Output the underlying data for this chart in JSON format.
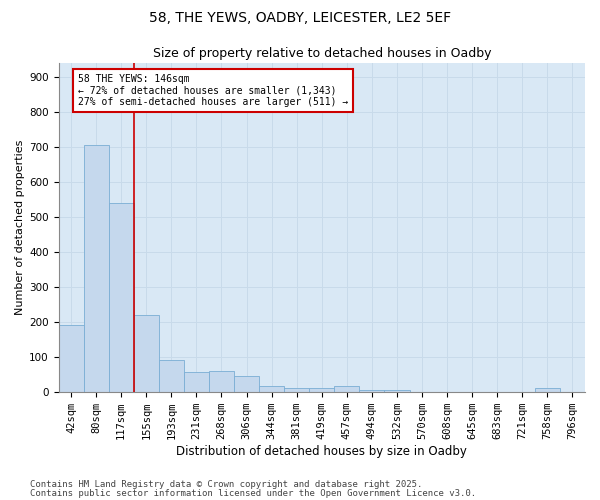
{
  "title_line1": "58, THE YEWS, OADBY, LEICESTER, LE2 5EF",
  "title_line2": "Size of property relative to detached houses in Oadby",
  "xlabel": "Distribution of detached houses by size in Oadby",
  "ylabel": "Number of detached properties",
  "categories": [
    "42sqm",
    "80sqm",
    "117sqm",
    "155sqm",
    "193sqm",
    "231sqm",
    "268sqm",
    "306sqm",
    "344sqm",
    "381sqm",
    "419sqm",
    "457sqm",
    "494sqm",
    "532sqm",
    "570sqm",
    "608sqm",
    "645sqm",
    "683sqm",
    "721sqm",
    "758sqm",
    "796sqm"
  ],
  "values": [
    190,
    705,
    540,
    220,
    90,
    55,
    60,
    45,
    15,
    10,
    10,
    15,
    5,
    5,
    0,
    0,
    0,
    0,
    0,
    10,
    0
  ],
  "bar_color": "#c5d8ed",
  "bar_edge_color": "#7aadd4",
  "vline_color": "#cc0000",
  "vline_pos": 2.5,
  "annotation_text": "58 THE YEWS: 146sqm\n← 72% of detached houses are smaller (1,343)\n27% of semi-detached houses are larger (511) →",
  "annotation_box_color": "#cc0000",
  "ylim": [
    0,
    940
  ],
  "yticks": [
    0,
    100,
    200,
    300,
    400,
    500,
    600,
    700,
    800,
    900
  ],
  "grid_color": "#c8daea",
  "bg_color": "#d9e8f5",
  "footer_line1": "Contains HM Land Registry data © Crown copyright and database right 2025.",
  "footer_line2": "Contains public sector information licensed under the Open Government Licence v3.0.",
  "footer_fontsize": 6.5,
  "title1_fontsize": 10,
  "title2_fontsize": 9,
  "ylabel_fontsize": 8,
  "xlabel_fontsize": 8.5,
  "tick_fontsize": 7.5
}
